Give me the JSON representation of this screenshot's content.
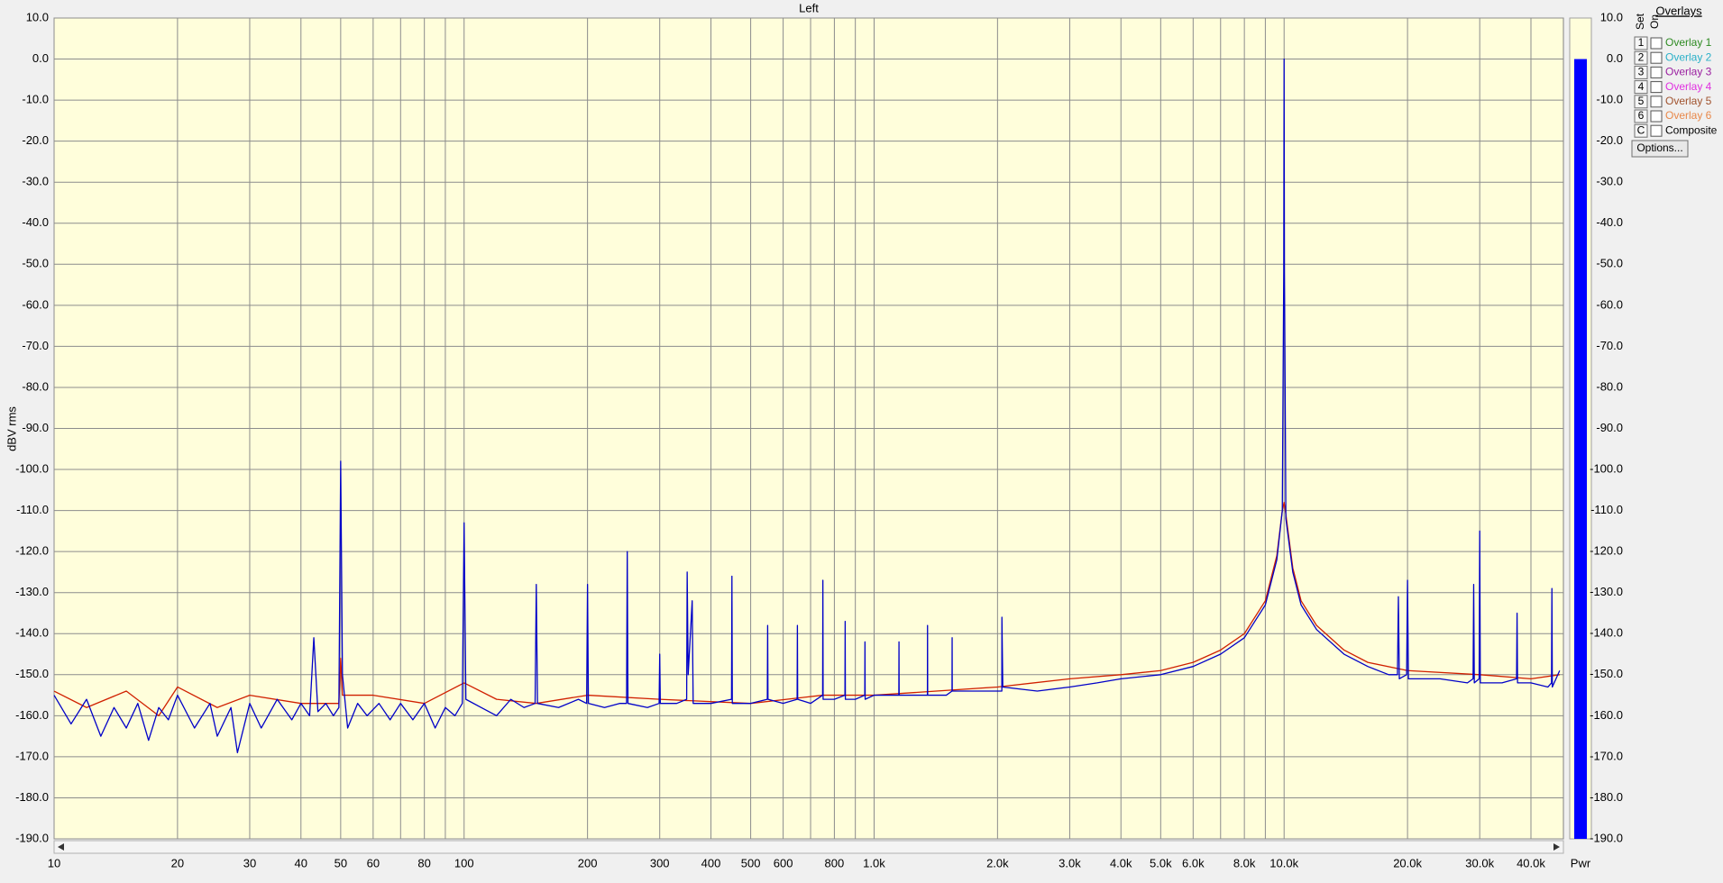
{
  "chart_data": {
    "type": "line",
    "title": "Left",
    "y_label": "dBV rms",
    "xscale": "log",
    "grid": true,
    "xlim": [
      10,
      48000
    ],
    "ylim": [
      -190,
      10
    ],
    "xticks": [
      10,
      20,
      30,
      40,
      50,
      60,
      80,
      100,
      200,
      300,
      400,
      500,
      600,
      800,
      {
        "value": 1000,
        "label": "1.0k"
      },
      {
        "value": 2000,
        "label": "2.0k"
      },
      {
        "value": 3000,
        "label": "3.0k"
      },
      {
        "value": 4000,
        "label": "4.0k"
      },
      {
        "value": 5000,
        "label": "5.0k"
      },
      {
        "value": 6000,
        "label": "6.0k"
      },
      {
        "value": 8000,
        "label": "8.0k"
      },
      {
        "value": 10000,
        "label": "10.0k"
      },
      {
        "value": 20000,
        "label": "20.0k"
      },
      {
        "value": 30000,
        "label": "30.0k"
      },
      {
        "value": 40000,
        "label": "40.0k"
      }
    ],
    "xgrid_minor": [
      70,
      90,
      700,
      900,
      7000,
      9000
    ],
    "yticks": [
      {
        "value": 10,
        "label": "10.0"
      },
      {
        "value": 0,
        "label": "0.0"
      },
      {
        "value": -10,
        "label": "-10.0"
      },
      {
        "value": -20,
        "label": "-20.0"
      },
      {
        "value": -30,
        "label": "-30.0"
      },
      {
        "value": -40,
        "label": "-40.0"
      },
      {
        "value": -50,
        "label": "-50.0"
      },
      {
        "value": -60,
        "label": "-60.0"
      },
      {
        "value": -70,
        "label": "-70.0"
      },
      {
        "value": -80,
        "label": "-80.0"
      },
      {
        "value": -90,
        "label": "-90.0"
      },
      {
        "value": -100,
        "label": "-100.0"
      },
      {
        "value": -110,
        "label": "-110.0"
      },
      {
        "value": -120,
        "label": "-120.0"
      },
      {
        "value": -130,
        "label": "-130.0"
      },
      {
        "value": -140,
        "label": "-140.0"
      },
      {
        "value": -150,
        "label": "-150.0"
      },
      {
        "value": -160,
        "label": "-160.0"
      },
      {
        "value": -170,
        "label": "-170.0"
      },
      {
        "value": -180,
        "label": "-180.0"
      },
      {
        "value": -190,
        "label": "-190.0"
      }
    ],
    "series": [
      {
        "color": "#d02000",
        "x": [
          10,
          12,
          15,
          18,
          20,
          25,
          30,
          40,
          49.5,
          50,
          50.5,
          60,
          80,
          100,
          120,
          150,
          200,
          300,
          500,
          750,
          1000,
          2000,
          3000,
          4000,
          5000,
          6000,
          7000,
          8000,
          9000,
          9600,
          9900,
          10000,
          10100,
          10500,
          11000,
          12000,
          14000,
          16000,
          20000,
          30000,
          40000,
          47000
        ],
        "values": [
          -154,
          -158,
          -154,
          -160,
          -153,
          -158,
          -155,
          -157,
          -157,
          -146,
          -155,
          -155,
          -157,
          -152,
          -156,
          -157,
          -155,
          -156,
          -157,
          -155,
          -155,
          -153,
          -151,
          -150,
          -149,
          -147,
          -144,
          -140,
          -132,
          -121,
          -110,
          -108,
          -111,
          -124,
          -132,
          -138,
          -144,
          -147,
          -149,
          -150,
          -151,
          -150
        ]
      },
      {
        "color": "#0000c8",
        "x": [
          10,
          11,
          12,
          13,
          14,
          15,
          16,
          17,
          18,
          19,
          20,
          22,
          24,
          25,
          27,
          28,
          30,
          32,
          35,
          38,
          40,
          42,
          43,
          44,
          46,
          48,
          49.5,
          50,
          50.5,
          52,
          55,
          58,
          62,
          66,
          70,
          75,
          80,
          85,
          90,
          95,
          99,
          100,
          101,
          110,
          120,
          130,
          140,
          149,
          150,
          151,
          170,
          190,
          199,
          200,
          201,
          220,
          240,
          249,
          250,
          251,
          280,
          299,
          300,
          301,
          330,
          349,
          350,
          352,
          360,
          362,
          400,
          449,
          450,
          451,
          500,
          549,
          550,
          551,
          600,
          649,
          650,
          651,
          700,
          749,
          750,
          751,
          800,
          849,
          850,
          851,
          900,
          949,
          950,
          951,
          1000,
          1149,
          1150,
          1151,
          1300,
          1349,
          1350,
          1351,
          1500,
          1549,
          1550,
          1551,
          1800,
          2049,
          2050,
          2060,
          2500,
          3000,
          3500,
          4000,
          5000,
          6000,
          7000,
          8000,
          9000,
          9600,
          9900,
          9980,
          10000,
          10020,
          10100,
          10500,
          11000,
          12000,
          14000,
          16000,
          18000,
          18900,
          19000,
          19100,
          19900,
          20000,
          20100,
          24000,
          28000,
          28900,
          29000,
          29100,
          29900,
          30000,
          30100,
          34000,
          36900,
          37000,
          37100,
          40000,
          44000,
          44900,
          45000,
          45100,
          47000
        ],
        "values": [
          -155,
          -162,
          -156,
          -165,
          -158,
          -163,
          -157,
          -166,
          -158,
          -161,
          -155,
          -163,
          -157,
          -165,
          -158,
          -169,
          -157,
          -163,
          -156,
          -161,
          -157,
          -160,
          -141,
          -159,
          -157,
          -160,
          -158,
          -98,
          -150,
          -163,
          -157,
          -160,
          -157,
          -161,
          -157,
          -161,
          -157,
          -163,
          -158,
          -160,
          -157,
          -113,
          -156,
          -158,
          -160,
          -156,
          -158,
          -157,
          -128,
          -157,
          -158,
          -156,
          -157,
          -128,
          -157,
          -158,
          -157,
          -157,
          -120,
          -157,
          -158,
          -157,
          -145,
          -157,
          -157,
          -156,
          -125,
          -150,
          -132,
          -157,
          -157,
          -156,
          -126,
          -157,
          -157,
          -156,
          -138,
          -156,
          -157,
          -156,
          -138,
          -156,
          -157,
          -155,
          -127,
          -156,
          -156,
          -155,
          -137,
          -156,
          -156,
          -155,
          -142,
          -156,
          -155,
          -155,
          -142,
          -155,
          -155,
          -155,
          -138,
          -155,
          -155,
          -154,
          -141,
          -154,
          -154,
          -154,
          -136,
          -153,
          -154,
          -153,
          -152,
          -151,
          -150,
          -148,
          -145,
          -141,
          -133,
          -122,
          -110,
          -52,
          0,
          -52,
          -112,
          -125,
          -133,
          -139,
          -145,
          -148,
          -150,
          -150,
          -131,
          -151,
          -150,
          -127,
          -151,
          -151,
          -152,
          -151,
          -128,
          -152,
          -151,
          -115,
          -152,
          -152,
          -151,
          -135,
          -152,
          -152,
          -153,
          -152,
          -129,
          -153,
          -149
        ]
      }
    ],
    "power_meter": {
      "label": "Pwr",
      "value": 0,
      "color": "#0000ff"
    }
  },
  "overlays": {
    "title": "Overlays",
    "set_label": "Set",
    "on_label": "On",
    "options": "Options...",
    "rows": [
      {
        "key": "1",
        "label": "Overlay 1",
        "color": "#2e8b22"
      },
      {
        "key": "2",
        "label": "Overlay 2",
        "color": "#2ab0c8"
      },
      {
        "key": "3",
        "label": "Overlay 3",
        "color": "#9a1ea0"
      },
      {
        "key": "4",
        "label": "Overlay 4",
        "color": "#e030e0"
      },
      {
        "key": "5",
        "label": "Overlay 5",
        "color": "#a0522d"
      },
      {
        "key": "6",
        "label": "Overlay 6",
        "color": "#e8884a"
      },
      {
        "key": "C",
        "label": "Composite",
        "color": "#000000"
      }
    ]
  }
}
